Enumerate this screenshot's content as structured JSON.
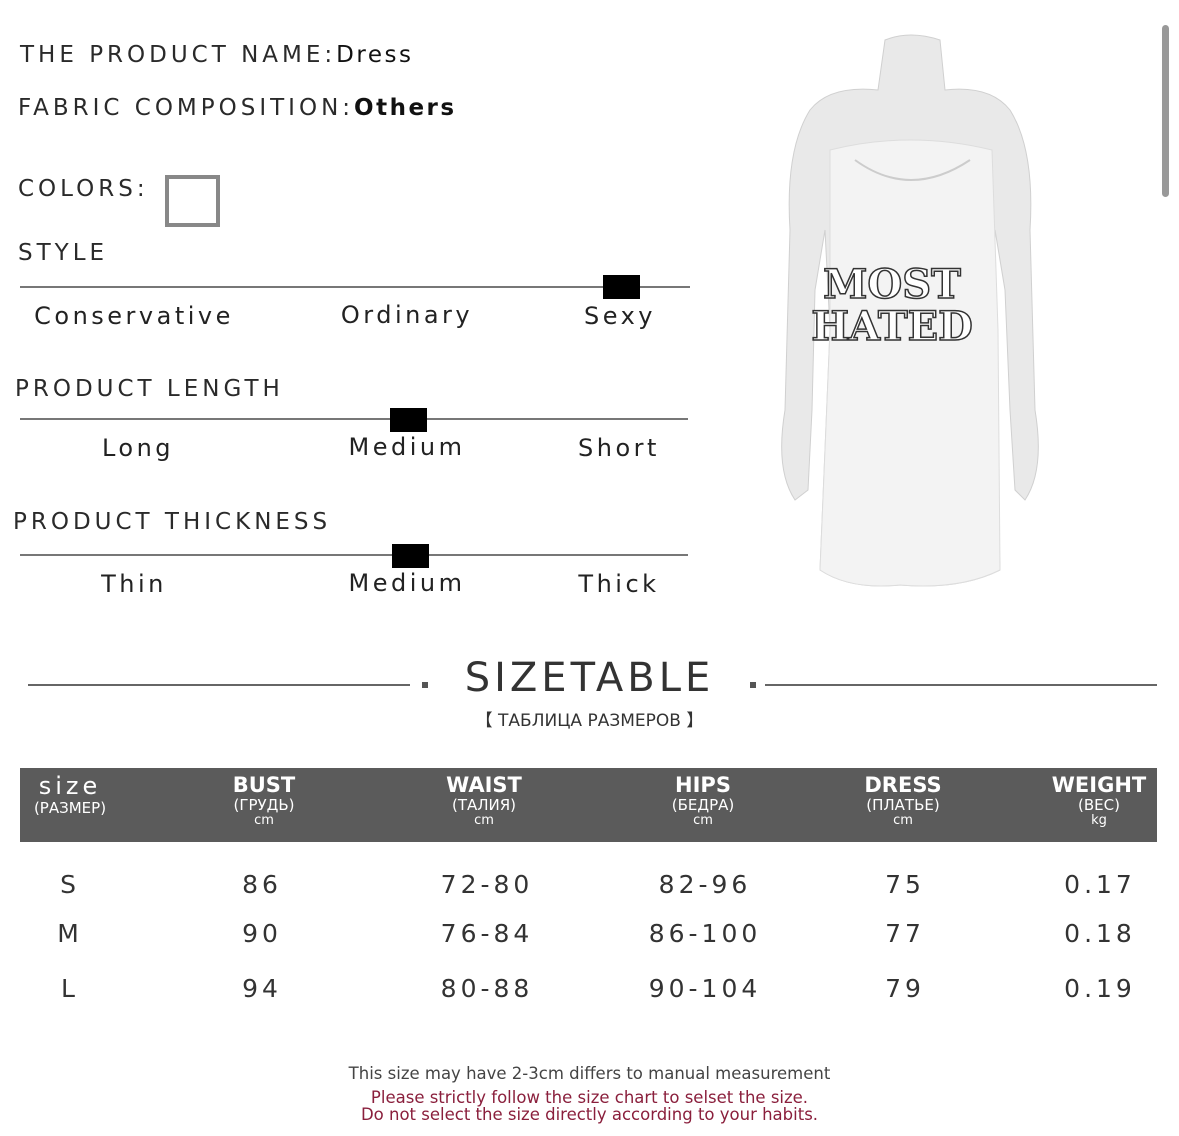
{
  "product": {
    "name_label": "THE PRODUCT NAME:",
    "name": "Dress",
    "fabric_label": "FABRIC COMPOSITION:",
    "fabric": "Others",
    "colors_label": "COLORS:"
  },
  "style": {
    "title": "STYLE",
    "options": [
      "Conservative",
      "Ordinary",
      "Sexy"
    ],
    "selected": "Sexy"
  },
  "length": {
    "title": "PRODUCT LENGTH",
    "options": [
      "Long",
      "Medium",
      "Short"
    ],
    "selected": "Medium"
  },
  "thickness": {
    "title": "PRODUCT THICKNESS",
    "options": [
      "Thin",
      "Medium",
      "Thick"
    ],
    "selected": "Medium"
  },
  "image": {
    "print_text": [
      "MOST",
      "HATED"
    ]
  },
  "sizetable": {
    "title": "SIZETABLE",
    "subtitle": "【 ТАБЛИЦА РАЗМЕРОВ 】",
    "headers": [
      {
        "t": "size",
        "s": "(РАЗМЕР)",
        "u": ""
      },
      {
        "t": "BUST",
        "s": "(ГРУДЬ)",
        "u": "cm"
      },
      {
        "t": "WAIST",
        "s": "(ТАЛИЯ)",
        "u": "cm"
      },
      {
        "t": "HIPS",
        "s": "(БЕДРА)",
        "u": "cm"
      },
      {
        "t": "DRESS",
        "s": "(ПЛАТЬЕ)",
        "u": "cm"
      },
      {
        "t": "WEIGHT",
        "s": "(ВЕС)",
        "u": "kg"
      }
    ],
    "rows": [
      [
        "S",
        "86",
        "72-80",
        "82-96",
        "75",
        "0.17"
      ],
      [
        "M",
        "90",
        "76-84",
        "86-100",
        "77",
        "0.18"
      ],
      [
        "L",
        "94",
        "80-88",
        "90-104",
        "79",
        "0.19"
      ]
    ]
  },
  "notes": {
    "line1": "This size may have 2-3cm differs to manual measurement",
    "line2": "Please strictly follow the size chart to selset the size.",
    "line3": "Do not select the size directly according to your habits.",
    "warn_color": "#8a1f3c"
  }
}
